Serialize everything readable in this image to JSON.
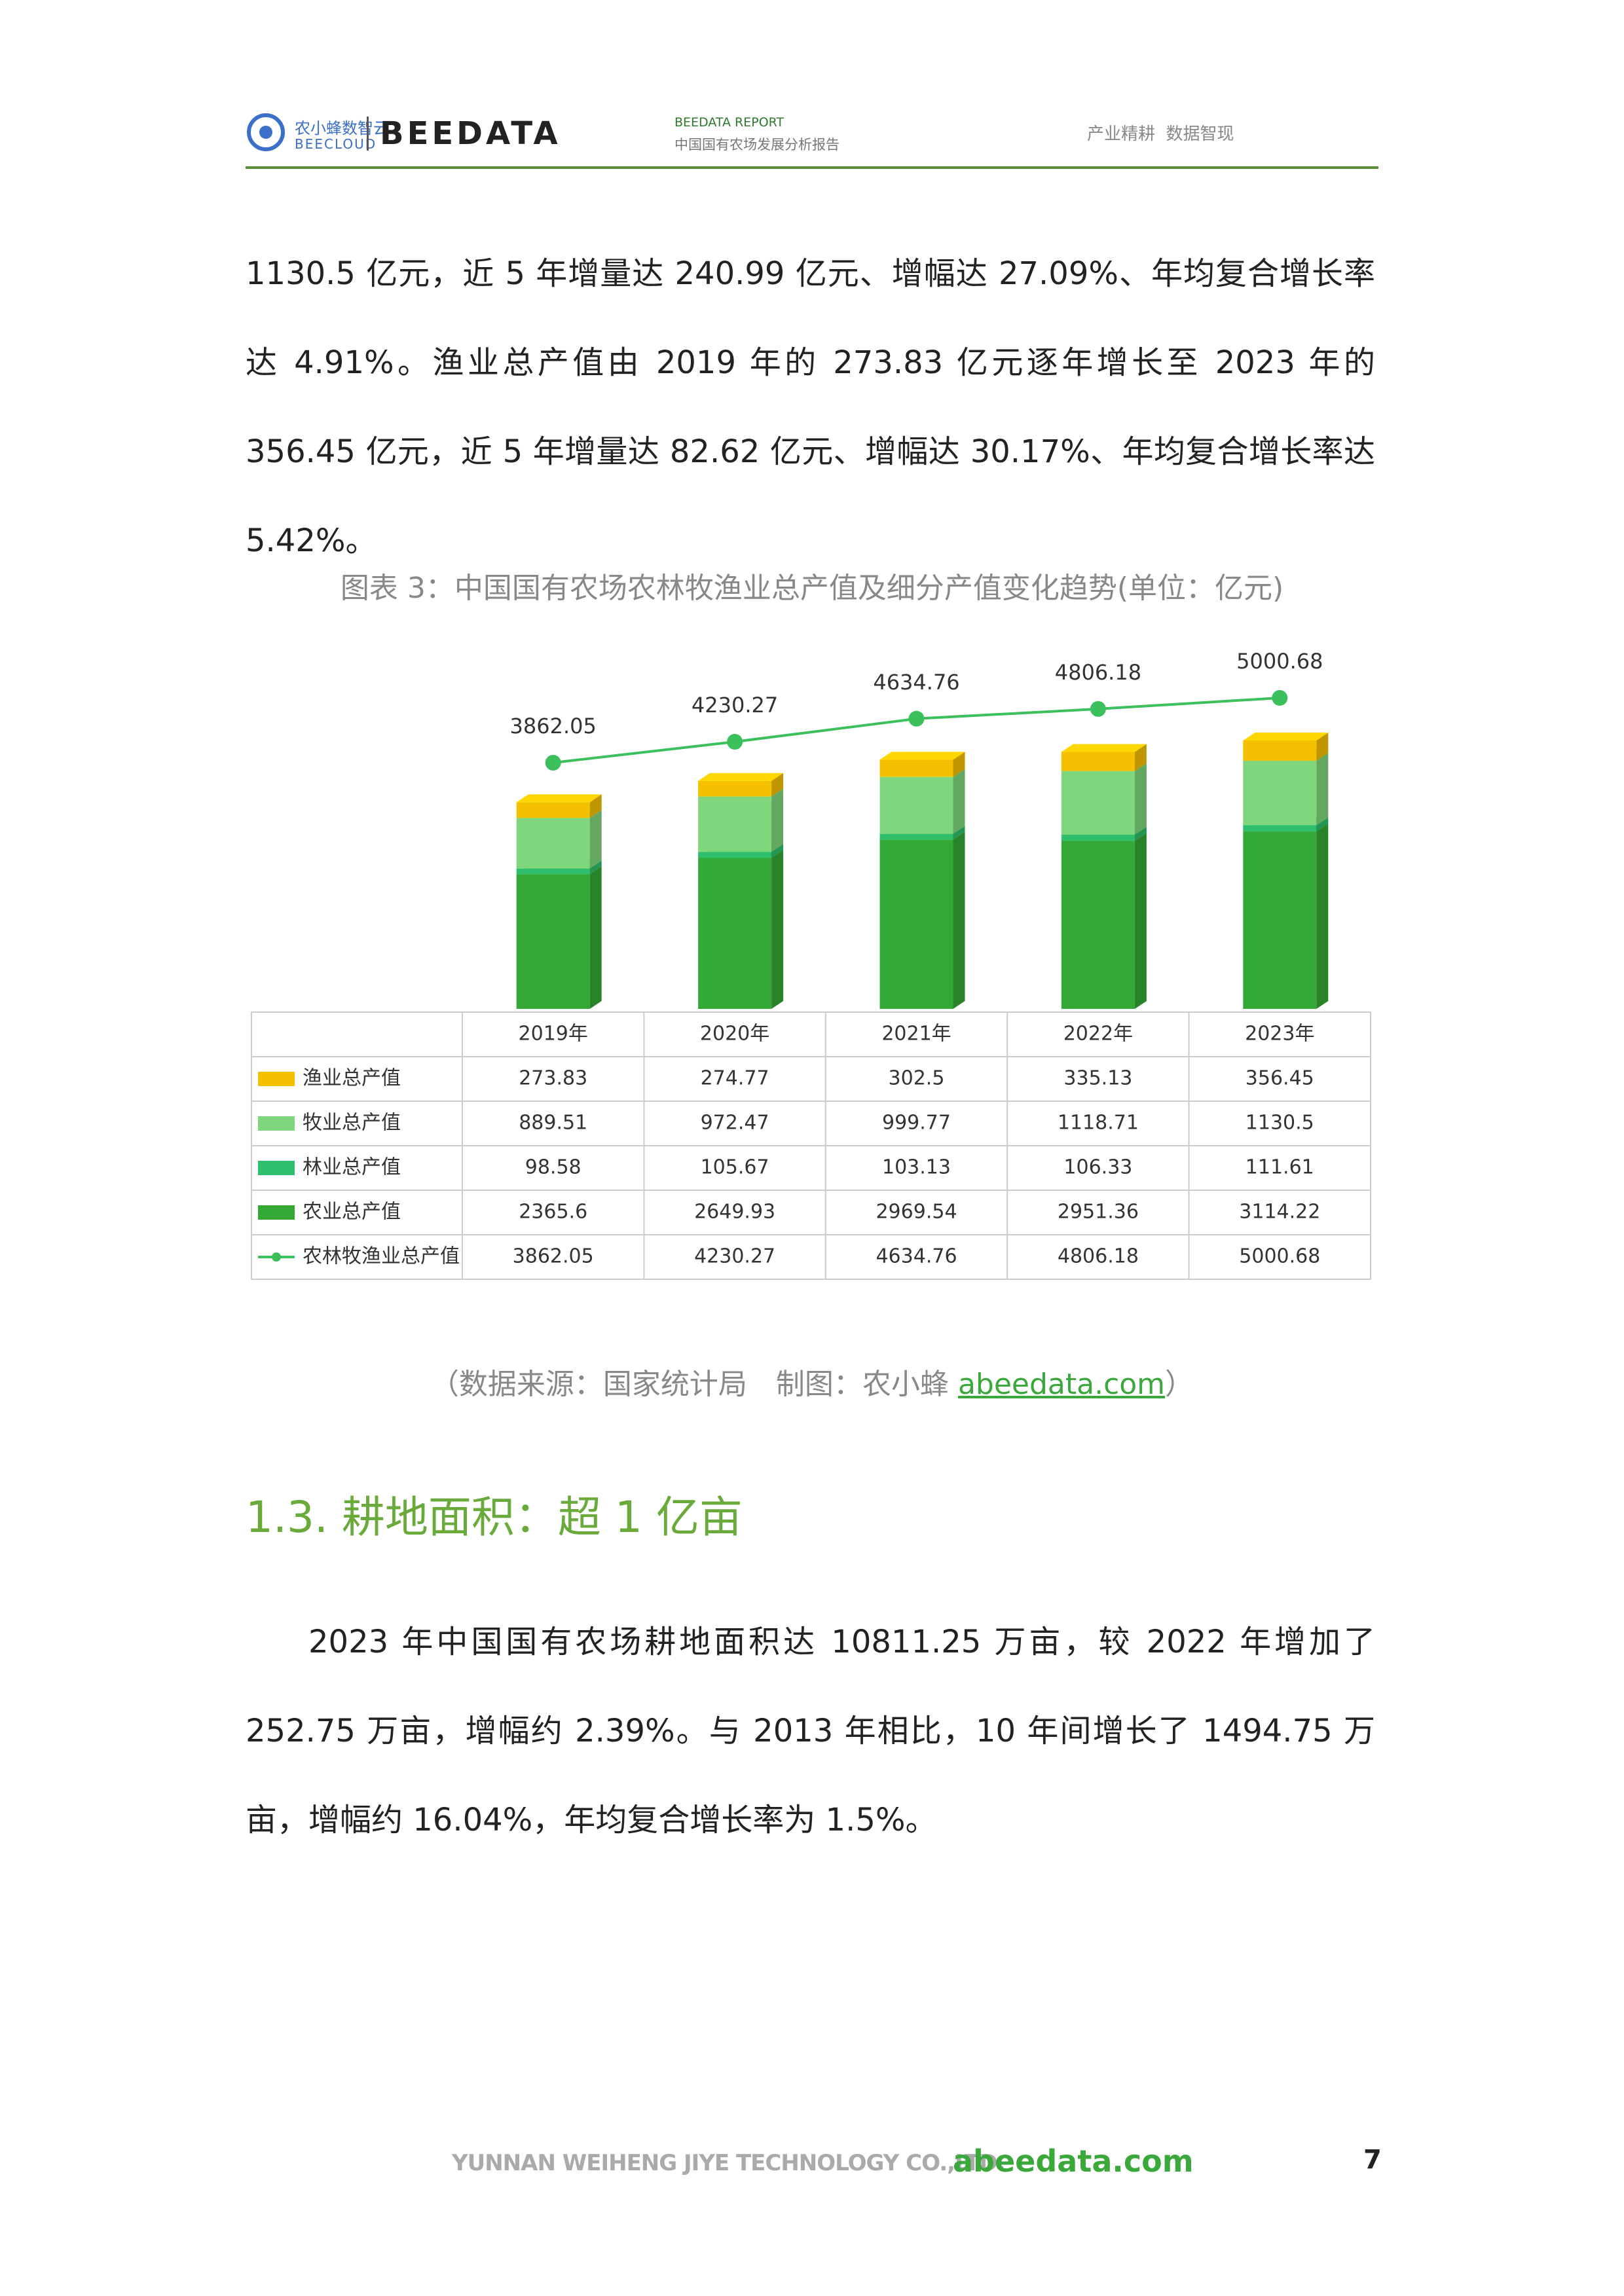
{
  "header": {
    "logo_cn": "农小蜂数智云",
    "logo_en": "BEECLOUD",
    "brand": "BEEDATA",
    "report_label": "BEEDATA REPORT",
    "report_title": "中国国有农场发展分析报告",
    "slogan": "产业精耕  数据智现"
  },
  "paragraphs": [
    "1130.5 亿元，近 5 年增量达 240.99 亿元、增幅达 27.09%、年均复合增长率达 4.91%。渔业总产值由 2019 年的 273.83 亿元逐年增长至 2023 年的 356.45 亿元，近 5 年增量达 82.62 亿元、增幅达 30.17%、年均复合增长率达 5.42%。"
  ],
  "chart_data": {
    "type": "bar",
    "title": "图表 3：中国国有农场农林牧渔业总产值及细分产值变化趋势(单位：亿元)",
    "categories": [
      "2019年",
      "2020年",
      "2021年",
      "2022年",
      "2023年"
    ],
    "series": [
      {
        "name": "渔业总产值",
        "color": "#f5c000",
        "values": [
          273.83,
          274.77,
          302.5,
          335.13,
          356.45
        ]
      },
      {
        "name": "牧业总产值",
        "color": "#7fd67c",
        "values": [
          889.51,
          972.47,
          999.77,
          1118.71,
          1130.5
        ]
      },
      {
        "name": "林业总产值",
        "color": "#2fbf6c",
        "values": [
          98.58,
          105.67,
          103.13,
          106.33,
          111.61
        ]
      },
      {
        "name": "农业总产值",
        "color": "#34a834",
        "values": [
          2365.6,
          2649.93,
          2969.54,
          2951.36,
          3114.22
        ]
      },
      {
        "name": "农林牧渔业总产值",
        "color": "#3cc05c",
        "type": "line",
        "values": [
          3862.05,
          4230.27,
          4634.76,
          4806.18,
          5000.68
        ]
      }
    ]
  },
  "source": {
    "prefix": "（数据来源：国家统计局　制图：农小蜂",
    "link": "abeedata.com",
    "suffix": "）"
  },
  "section": {
    "heading": "1.3. 耕地面积：超 1 亿亩",
    "paragraphs": [
      "2023 年中国国有农场耕地面积达 10811.25 万亩，较 2022 年增加了 252.75 万亩，增幅约 2.39%。与 2013 年相比，10 年间增长了 1494.75 万亩，增幅约 16.04%，年均复合增长率为 1.5%。"
    ]
  },
  "footer": {
    "company": "YUNNAN WEIHENG JIYE TECHNOLOGY CO.,LTD.",
    "site": "abeedata.com",
    "page": "7"
  }
}
